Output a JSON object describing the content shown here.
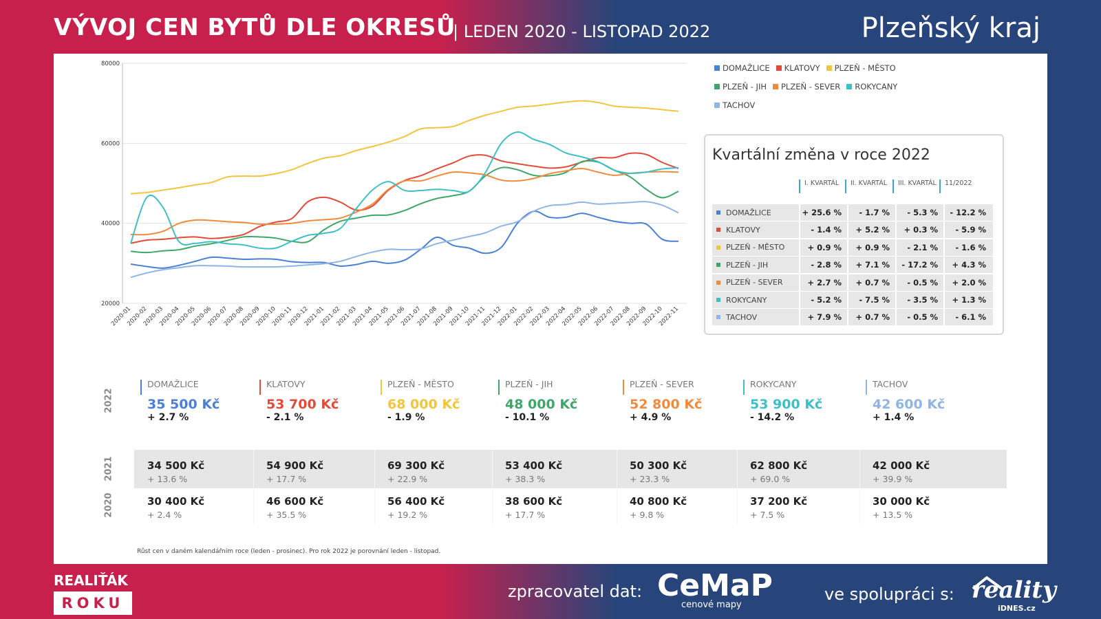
{
  "header": {
    "title": "VÝVOJ CEN BYTŮ DLE OKRESŮ",
    "subtitle": "| LEDEN 2020 - LISTOPAD 2022",
    "region": "Plzeňský kraj"
  },
  "chart_data": {
    "type": "line",
    "ylim": [
      20000,
      80000
    ],
    "yticks": [
      20000,
      40000,
      60000,
      80000
    ],
    "grid": true,
    "legend_position": "top-right",
    "x": [
      "2020-01",
      "2020-02",
      "2020-03",
      "2020-04",
      "2020-05",
      "2020-06",
      "2020-07",
      "2020-08",
      "2020-09",
      "2020-10",
      "2020-11",
      "2020-12",
      "2021-01",
      "2021-02",
      "2021-03",
      "2021-04",
      "2021-05",
      "2021-06",
      "2021-07",
      "2021-08",
      "2021-09",
      "2021-10",
      "2021-11",
      "2021-12",
      "2022-01",
      "2022-02",
      "2022-03",
      "2022-04",
      "2022-05",
      "2022-06",
      "2022-07",
      "2022-08",
      "2022-09",
      "2022-10",
      "2022-11"
    ],
    "series": [
      {
        "name": "DOMAŽLICE",
        "color": "#4a7fd6",
        "values": [
          29800,
          29200,
          28800,
          29500,
          30500,
          31500,
          31300,
          31000,
          31100,
          31000,
          30400,
          30200,
          30200,
          29300,
          29700,
          30500,
          30000,
          30800,
          33500,
          36500,
          34500,
          33800,
          32500,
          34000,
          40000,
          43000,
          41500,
          41500,
          42500,
          41500,
          40500,
          40000,
          39800,
          36000,
          35500
        ]
      },
      {
        "name": "KLATOVY",
        "color": "#e24b3a",
        "values": [
          35000,
          35800,
          36000,
          36400,
          36600,
          36200,
          36500,
          37200,
          39200,
          40300,
          41200,
          45400,
          46500,
          45300,
          43300,
          44300,
          48300,
          50700,
          51900,
          53600,
          55100,
          56800,
          57000,
          55600,
          54900,
          54300,
          53800,
          54100,
          55300,
          56400,
          56400,
          57500,
          57200,
          55200,
          53700
        ]
      },
      {
        "name": "PLZEŇ - MĚSTO",
        "color": "#f2c53d",
        "values": [
          47400,
          47700,
          48300,
          48900,
          49600,
          50200,
          51600,
          51800,
          51800,
          52400,
          53400,
          55000,
          56300,
          56900,
          58200,
          59200,
          60300,
          61700,
          63600,
          63900,
          64200,
          65700,
          67000,
          68000,
          69000,
          69300,
          69800,
          70300,
          70600,
          70200,
          69300,
          69000,
          68800,
          68400,
          68000
        ]
      },
      {
        "name": "PLZEŇ - JIH",
        "color": "#3fa66a",
        "values": [
          33000,
          32700,
          33100,
          33400,
          34300,
          34900,
          35700,
          36600,
          36600,
          36300,
          35500,
          35400,
          38400,
          40500,
          41300,
          42000,
          42100,
          43200,
          44900,
          46200,
          46900,
          48000,
          51800,
          53900,
          53400,
          52000,
          51900,
          52700,
          55400,
          55300,
          53300,
          51600,
          48500,
          46400,
          48000
        ]
      },
      {
        "name": "PLZEŇ - SEVER",
        "color": "#f08a3c",
        "values": [
          37200,
          37200,
          38000,
          40000,
          40800,
          40700,
          40400,
          40200,
          39800,
          39800,
          40000,
          40600,
          40900,
          41300,
          42800,
          44800,
          48500,
          50600,
          50600,
          51800,
          52800,
          52600,
          52100,
          50800,
          50600,
          51200,
          52400,
          53100,
          53700,
          52800,
          52000,
          52500,
          52800,
          52900,
          52800
        ]
      },
      {
        "name": "ROKYCANY",
        "color": "#3dbfc7",
        "values": [
          35000,
          46500,
          44000,
          35400,
          35000,
          35400,
          34900,
          34600,
          33800,
          33800,
          35500,
          37000,
          37500,
          38700,
          43700,
          48300,
          50400,
          48200,
          48200,
          48500,
          48200,
          48000,
          52600,
          60000,
          62800,
          61000,
          59700,
          57600,
          56600,
          55400,
          53300,
          52500,
          52800,
          53600,
          53900
        ]
      },
      {
        "name": "TACHOV",
        "color": "#8fb4e6",
        "values": [
          26500,
          27600,
          28400,
          28900,
          29400,
          29400,
          29300,
          29100,
          29100,
          29100,
          29300,
          29600,
          29900,
          30500,
          31700,
          32800,
          33500,
          33400,
          33600,
          34900,
          35800,
          36700,
          37600,
          39300,
          40400,
          43000,
          44400,
          44700,
          45300,
          44800,
          45000,
          45200,
          45400,
          44500,
          42600
        ]
      }
    ]
  },
  "quarterly": {
    "title": "Kvartální změna v roce 2022",
    "headers": [
      "I. KVARTÁL",
      "II. KVARTÁL",
      "III. KVARTÁL",
      "11/2022"
    ],
    "rows": [
      {
        "name": "DOMAŽLICE",
        "color": "#4a7fd6",
        "values": [
          "+ 25.6 %",
          "- 1.7 %",
          "- 5.3 %",
          "- 12.2 %"
        ]
      },
      {
        "name": "KLATOVY",
        "color": "#e24b3a",
        "values": [
          "- 1.4 %",
          "+ 5.2 %",
          "+ 0.3 %",
          "- 5.9 %"
        ]
      },
      {
        "name": "PLZEŇ - MĚSTO",
        "color": "#f2c53d",
        "values": [
          "+ 0.9 %",
          "+ 0.9 %",
          "- 2.1 %",
          "- 1.6 %"
        ]
      },
      {
        "name": "PLZEŇ - JIH",
        "color": "#3fa66a",
        "values": [
          "- 2.8 %",
          "+ 7.1 %",
          "- 17.2 %",
          "+ 4.3 %"
        ]
      },
      {
        "name": "PLZEŇ - SEVER",
        "color": "#f08a3c",
        "values": [
          "+ 2.7 %",
          "+ 0.7 %",
          "- 0.5 %",
          "+ 2.0 %"
        ]
      },
      {
        "name": "ROKYCANY",
        "color": "#3dbfc7",
        "values": [
          "- 5.2 %",
          "- 7.5 %",
          "- 3.5 %",
          "+ 1.3 %"
        ]
      },
      {
        "name": "TACHOV",
        "color": "#8fb4e6",
        "values": [
          "+ 7.9 %",
          "+ 0.7 %",
          "- 0.5 %",
          "- 6.1 %"
        ]
      }
    ]
  },
  "annual": {
    "years": [
      "2022",
      "2021",
      "2020"
    ],
    "districts": [
      {
        "name": "DOMAŽLICE",
        "color": "#4a7fd6",
        "y2022": {
          "price": "35 500 Kč",
          "change": "+ 2.7 %"
        },
        "y2021": {
          "price": "34 500 Kč",
          "change": "+ 13.6 %"
        },
        "y2020": {
          "price": "30 400 Kč",
          "change": "+ 2.4 %"
        }
      },
      {
        "name": "KLATOVY",
        "color": "#e24b3a",
        "y2022": {
          "price": "53 700 Kč",
          "change": "- 2.1 %"
        },
        "y2021": {
          "price": "54 900 Kč",
          "change": "+ 17.7 %"
        },
        "y2020": {
          "price": "46 600 Kč",
          "change": "+ 35.5 %"
        }
      },
      {
        "name": "PLZEŇ - MĚSTO",
        "color": "#f2c53d",
        "y2022": {
          "price": "68 000 Kč",
          "change": "- 1.9 %"
        },
        "y2021": {
          "price": "69 300 Kč",
          "change": "+ 22.9 %"
        },
        "y2020": {
          "price": "56 400 Kč",
          "change": "+ 19.2 %"
        }
      },
      {
        "name": "PLZEŇ - JIH",
        "color": "#3fa66a",
        "y2022": {
          "price": "48 000 Kč",
          "change": "- 10.1 %"
        },
        "y2021": {
          "price": "53 400 Kč",
          "change": "+ 38.3 %"
        },
        "y2020": {
          "price": "38 600 Kč",
          "change": "+ 17.7 %"
        }
      },
      {
        "name": "PLZEŇ - SEVER",
        "color": "#f08a3c",
        "y2022": {
          "price": "52 800 Kč",
          "change": "+ 4.9 %"
        },
        "y2021": {
          "price": "50 300 Kč",
          "change": "+ 23.3 %"
        },
        "y2020": {
          "price": "40 800 Kč",
          "change": "+ 9.8 %"
        }
      },
      {
        "name": "ROKYCANY",
        "color": "#3dbfc7",
        "y2022": {
          "price": "53 900 Kč",
          "change": "- 14.2 %"
        },
        "y2021": {
          "price": "62 800 Kč",
          "change": "+ 69.0 %"
        },
        "y2020": {
          "price": "37 200 Kč",
          "change": "+ 7.5 %"
        }
      },
      {
        "name": "TACHOV",
        "color": "#8fb4e6",
        "y2022": {
          "price": "42 600 Kč",
          "change": "+ 1.4 %"
        },
        "y2021": {
          "price": "42 000 Kč",
          "change": "+ 39.9 %"
        },
        "y2020": {
          "price": "30 000 Kč",
          "change": "+ 13.5 %"
        }
      }
    ],
    "footnote": "Růst cen v daném kalendářním roce (leden - prosinec). Pro rok 2022 je porovnání leden - listopad."
  },
  "footer": {
    "brand_top": "REALIŤÁK",
    "brand_bottom": "ROKU",
    "processor_label": "zpracovatel dat:",
    "processor_name": "CeMaP",
    "processor_sub": "cenové mapy",
    "coop_label": "ve spolupráci s:",
    "partner_name": "reality",
    "partner_sub": "iDNES.cz"
  }
}
